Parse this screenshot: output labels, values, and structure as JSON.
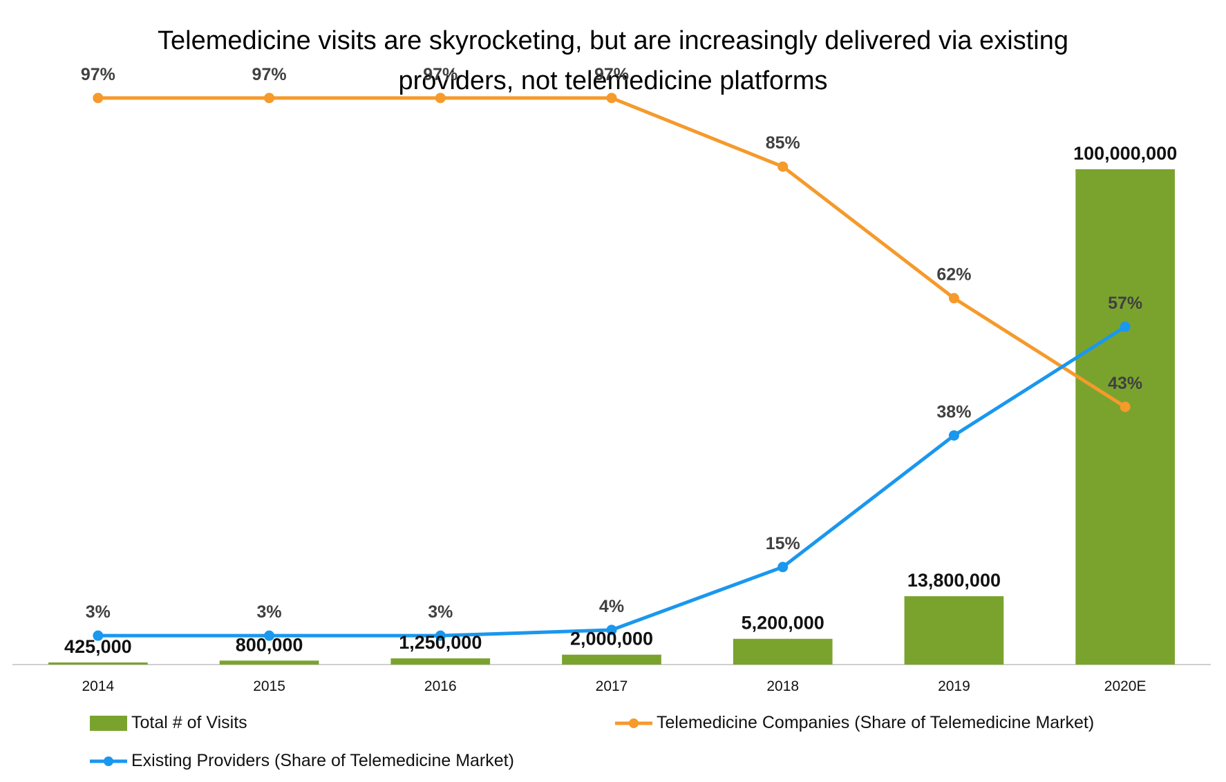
{
  "chart_data": {
    "type": "bar+line",
    "title_lines": [
      "Telemedicine visits are skyrocketing, but are increasingly delivered via existing",
      "providers, not telemedicine platforms"
    ],
    "categories": [
      "2014",
      "2015",
      "2016",
      "2017",
      "2018",
      "2019",
      "2020E"
    ],
    "bars": {
      "name": "Total # of Visits",
      "values": [
        425000,
        800000,
        1250000,
        2000000,
        5200000,
        13800000,
        100000000
      ],
      "labels": [
        "425,000",
        "800,000",
        "1,250,000",
        "2,000,000",
        "5,200,000",
        "13,800,000",
        "100,000,000"
      ],
      "ylim": [
        0,
        100000000
      ],
      "color": "#7aa32e"
    },
    "lines": [
      {
        "name": "Telemedicine Companies (Share of Telemedicine Market)",
        "values": [
          97,
          97,
          97,
          97,
          85,
          62,
          43
        ],
        "labels": [
          "97%",
          "97%",
          "97%",
          "97%",
          "85%",
          "62%",
          "43%"
        ],
        "color": "#f59a2b"
      },
      {
        "name": "Existing Providers (Share of Telemedicine Market)",
        "values": [
          3,
          3,
          3,
          4,
          15,
          38,
          57
        ],
        "labels": [
          "3%",
          "3%",
          "3%",
          "4%",
          "15%",
          "38%",
          "57%"
        ],
        "color": "#1a97ee"
      }
    ],
    "line_ylim": [
      0,
      100
    ],
    "gridlines": false,
    "legend_position": "bottom"
  }
}
